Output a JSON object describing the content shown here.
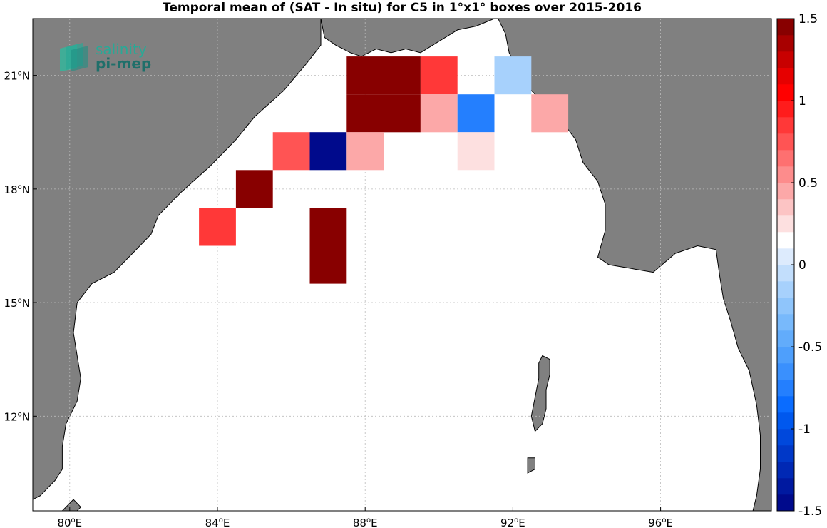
{
  "title": "Temporal mean of (SAT - In situ) for C5 in 1°x1° boxes over 2015-2016",
  "logo": {
    "line1": "salinity",
    "line2": "pi-mep"
  },
  "colors": {
    "land": "#808080",
    "coast": "#000000",
    "grid": "#bbbbbb",
    "sea": "#ffffff"
  },
  "chart_data": {
    "type": "heatmap",
    "xlim": [
      79,
      99
    ],
    "ylim": [
      9.5,
      22.5
    ],
    "x_ticks": [
      {
        "value": 80,
        "deg": "80",
        "hemi": "E"
      },
      {
        "value": 84,
        "deg": "84",
        "hemi": "E"
      },
      {
        "value": 88,
        "deg": "88",
        "hemi": "E"
      },
      {
        "value": 92,
        "deg": "92",
        "hemi": "E"
      },
      {
        "value": 96,
        "deg": "96",
        "hemi": "E"
      }
    ],
    "y_ticks": [
      {
        "value": 12,
        "deg": "12",
        "hemi": "N"
      },
      {
        "value": 15,
        "deg": "15",
        "hemi": "N"
      },
      {
        "value": 18,
        "deg": "18",
        "hemi": "N"
      },
      {
        "value": 21,
        "deg": "21",
        "hemi": "N"
      }
    ],
    "grid": true,
    "colorbar": {
      "min": -1.5,
      "max": 1.5,
      "steps": 30,
      "ticks": [
        "-1.5",
        "-1",
        "-0.5",
        "0",
        "0.5",
        "1",
        "1.5"
      ],
      "colors": [
        "#000a8c",
        "#0019a0",
        "#0028b4",
        "#0038c8",
        "#0048dc",
        "#0058ee",
        "#0a6cff",
        "#247ffe",
        "#3a90fd",
        "#4e9ffc",
        "#62acfb",
        "#78b9fb",
        "#8fc5fb",
        "#a7d1fc",
        "#c2defc",
        "#ddebfd",
        "#ffffff",
        "#fde0e0",
        "#fcc4c4",
        "#fca8a8",
        "#fd8c8c",
        "#fe7070",
        "#ff5454",
        "#ff3838",
        "#ff1c1c",
        "#ff0000",
        "#e60000",
        "#c80000",
        "#a80000",
        "#880000"
      ]
    },
    "boxes": [
      {
        "lon": 88,
        "lat": 21,
        "value": 1.5
      },
      {
        "lon": 89,
        "lat": 21,
        "value": 1.5
      },
      {
        "lon": 90,
        "lat": 21,
        "value": 0.9
      },
      {
        "lon": 92,
        "lat": 21,
        "value": -0.1
      },
      {
        "lon": 88,
        "lat": 20,
        "value": 1.5
      },
      {
        "lon": 89,
        "lat": 20,
        "value": 1.5
      },
      {
        "lon": 90,
        "lat": 20,
        "value": 0.45
      },
      {
        "lon": 91,
        "lat": 20,
        "value": -0.75
      },
      {
        "lon": 93,
        "lat": 20,
        "value": 0.45
      },
      {
        "lon": 86,
        "lat": 19,
        "value": 0.75
      },
      {
        "lon": 87,
        "lat": 19,
        "value": -1.5
      },
      {
        "lon": 88,
        "lat": 19,
        "value": 0.45
      },
      {
        "lon": 91,
        "lat": 19,
        "value": 0.25
      },
      {
        "lon": 85,
        "lat": 18,
        "value": 1.5
      },
      {
        "lon": 84,
        "lat": 17,
        "value": 0.9
      },
      {
        "lon": 87,
        "lat": 17,
        "value": 1.5
      },
      {
        "lon": 87,
        "lat": 16,
        "value": 1.5
      }
    ],
    "land": {
      "india": [
        [
          79,
          22.5
        ],
        [
          86.8,
          22.5
        ],
        [
          86.9,
          22.0
        ],
        [
          87.2,
          21.8
        ],
        [
          87.6,
          21.6
        ],
        [
          87.9,
          21.5
        ],
        [
          88.3,
          21.7
        ],
        [
          88.7,
          21.6
        ],
        [
          89.1,
          21.7
        ],
        [
          89.5,
          21.6
        ],
        [
          90.0,
          21.9
        ],
        [
          90.5,
          22.2
        ],
        [
          91.0,
          22.3
        ],
        [
          91.5,
          22.5
        ],
        [
          79,
          22.5
        ]
      ],
      "india_west": [
        [
          79,
          22.5
        ],
        [
          86.8,
          22.5
        ],
        [
          86.8,
          21.8
        ],
        [
          86.4,
          21.3
        ],
        [
          85.8,
          20.6
        ],
        [
          85.0,
          19.9
        ],
        [
          84.5,
          19.3
        ],
        [
          83.8,
          18.6
        ],
        [
          83.0,
          17.9
        ],
        [
          82.4,
          17.3
        ],
        [
          82.2,
          16.8
        ],
        [
          81.7,
          16.3
        ],
        [
          81.2,
          15.8
        ],
        [
          80.6,
          15.5
        ],
        [
          80.2,
          15.0
        ],
        [
          80.1,
          14.2
        ],
        [
          80.2,
          13.6
        ],
        [
          80.3,
          13.0
        ],
        [
          80.2,
          12.4
        ],
        [
          79.9,
          11.8
        ],
        [
          79.8,
          11.2
        ],
        [
          79.8,
          10.6
        ],
        [
          79.6,
          10.3
        ],
        [
          79.4,
          10.1
        ],
        [
          79.2,
          9.9
        ],
        [
          79.0,
          9.8
        ],
        [
          79,
          22.5
        ]
      ],
      "myanmar": [
        [
          99,
          22.5
        ],
        [
          91.6,
          22.5
        ],
        [
          91.8,
          22.1
        ],
        [
          91.9,
          21.6
        ],
        [
          92.1,
          21.2
        ],
        [
          92.3,
          20.8
        ],
        [
          92.7,
          20.4
        ],
        [
          93.0,
          20.0
        ],
        [
          93.4,
          19.7
        ],
        [
          93.7,
          19.3
        ],
        [
          93.9,
          18.7
        ],
        [
          94.3,
          18.2
        ],
        [
          94.5,
          17.6
        ],
        [
          94.5,
          16.9
        ],
        [
          94.3,
          16.2
        ],
        [
          94.6,
          16.0
        ],
        [
          95.2,
          15.9
        ],
        [
          95.8,
          15.8
        ],
        [
          96.4,
          16.3
        ],
        [
          97.0,
          16.5
        ],
        [
          97.5,
          16.4
        ],
        [
          97.6,
          15.7
        ],
        [
          97.7,
          15.1
        ],
        [
          97.9,
          14.5
        ],
        [
          98.1,
          13.8
        ],
        [
          98.4,
          13.2
        ],
        [
          98.6,
          12.3
        ],
        [
          98.7,
          11.5
        ],
        [
          98.7,
          10.6
        ],
        [
          98.6,
          9.9
        ],
        [
          98.5,
          9.5
        ],
        [
          99,
          9.5
        ]
      ],
      "andaman_n": [
        [
          92.8,
          13.6
        ],
        [
          93.0,
          13.5
        ],
        [
          93.0,
          13.1
        ],
        [
          92.9,
          12.7
        ],
        [
          92.9,
          12.2
        ],
        [
          92.8,
          11.8
        ],
        [
          92.6,
          11.6
        ],
        [
          92.5,
          12.0
        ],
        [
          92.6,
          12.5
        ],
        [
          92.7,
          13.0
        ],
        [
          92.7,
          13.4
        ]
      ],
      "little_andaman": [
        [
          92.4,
          10.9
        ],
        [
          92.6,
          10.9
        ],
        [
          92.6,
          10.6
        ],
        [
          92.4,
          10.5
        ]
      ],
      "sri_lanka": [
        [
          79.8,
          9.5
        ],
        [
          80.1,
          9.8
        ],
        [
          80.3,
          9.6
        ],
        [
          80.2,
          9.5
        ]
      ]
    }
  }
}
